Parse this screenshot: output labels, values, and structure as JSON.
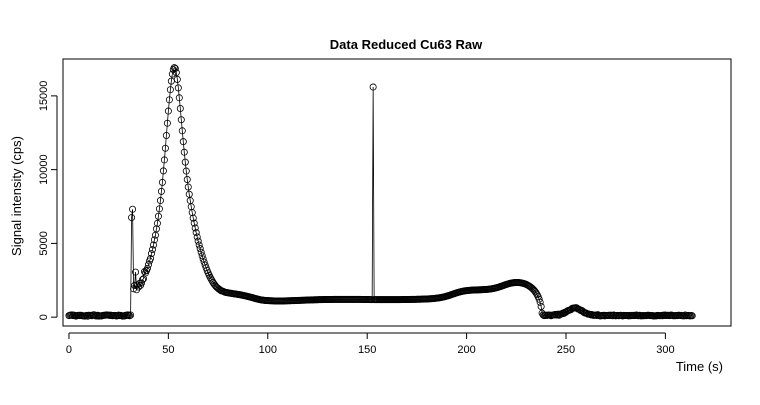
{
  "chart_data": {
    "type": "scatter",
    "title": "Data Reduced Cu63 Raw",
    "xlabel": "Time (s)",
    "ylabel": "Signal intensity (cps)",
    "xlim": [
      -3,
      333
    ],
    "ylim": [
      -600,
      17500
    ],
    "x_ticks": [
      0,
      50,
      100,
      150,
      200,
      250,
      300
    ],
    "y_ticks": [
      0,
      5000,
      10000,
      15000
    ],
    "markers": "open circles joined by a thin line",
    "grid": false,
    "legend": "none",
    "sample_interval_s": 0.5,
    "series": [
      {
        "x_start": 0,
        "x_step": 0.5,
        "values": [
          101,
          126,
          149,
          151,
          100,
          140,
          111,
          70,
          106,
          118,
          131,
          106,
          128,
          102,
          83,
          94,
          72,
          99,
          124,
          64,
          126,
          121,
          118,
          94,
          143,
          159,
          143,
          82,
          89,
          126,
          70,
          94,
          84,
          81,
          119,
          119,
          134,
          132,
          158,
          136,
          141,
          112,
          138,
          112,
          91,
          108,
          121,
          94,
          78,
          123,
          141,
          101,
          123,
          96,
          69,
          95,
          76,
          126,
          117,
          153,
          137,
          92,
          148,
          6750,
          7315,
          1922,
          2144,
          3055,
          1854,
          2167,
          2045,
          2290,
          2152,
          2313,
          2536,
          2603,
          3092,
          2999,
          3153,
          3308,
          3558,
          3810,
          3973,
          4309,
          4581,
          4890,
          5242,
          5557,
          5983,
          6363,
          6839,
          7344,
          7905,
          8527,
          9136,
          9915,
          10658,
          11451,
          12315,
          13147,
          13971,
          14733,
          15419,
          16001,
          16478,
          16789,
          16915,
          16860,
          16575,
          16120,
          15544,
          14870,
          14145,
          13381,
          12633,
          11897,
          11183,
          10510,
          9904,
          9331,
          8823,
          8331,
          7902,
          7488,
          7091,
          6715,
          6371,
          6046,
          5733,
          5437,
          5154,
          4892,
          4644,
          4401,
          4161,
          3946,
          3734,
          3530,
          3345,
          3163,
          3002,
          2851,
          2703,
          2582,
          2459,
          2347,
          2248,
          2160,
          2075,
          2005,
          1953,
          1893,
          1855,
          1794,
          1773,
          1750,
          1725,
          1689,
          1675,
          1661,
          1650,
          1637,
          1624,
          1617,
          1605,
          1595,
          1578,
          1577,
          1569,
          1555,
          1537,
          1531,
          1516,
          1509,
          1495,
          1478,
          1463,
          1450,
          1438,
          1419,
          1401,
          1387,
          1366,
          1350,
          1331,
          1311,
          1288,
          1270,
          1253,
          1238,
          1219,
          1201,
          1189,
          1175,
          1164,
          1153,
          1145,
          1138,
          1130,
          1126,
          1122,
          1117,
          1114,
          1111,
          1109,
          1106,
          1102,
          1099,
          1097,
          1096,
          1095,
          1094,
          1094,
          1094,
          1095,
          1096,
          1099,
          1101,
          1104,
          1106,
          1109,
          1111,
          1113,
          1116,
          1118,
          1120,
          1121,
          1123,
          1125,
          1128,
          1132,
          1135,
          1137,
          1139,
          1142,
          1145,
          1148,
          1150,
          1154,
          1157,
          1160,
          1163,
          1165,
          1168,
          1170,
          1171,
          1173,
          1176,
          1178,
          1179,
          1181,
          1184,
          1186,
          1188,
          1190,
          1191,
          1193,
          1195,
          1196,
          1197,
          1197,
          1197,
          1198,
          1199,
          1199,
          1200,
          1201,
          1202,
          1203,
          1203,
          1203,
          1203,
          1205,
          1205,
          1206,
          1206,
          1206,
          1206,
          1207,
          1207,
          1207,
          1207,
          1207,
          1206,
          1206,
          1206,
          1205,
          1205,
          1204,
          1203,
          1203,
          1202,
          1201,
          1201,
          1200,
          1199,
          1198,
          1198,
          1197,
          1196,
          1195,
          1194,
          1193,
          1192,
          1192,
          1191,
          15600,
          1190,
          1189,
          1189,
          1188,
          1188,
          1187,
          1187,
          1187,
          1186,
          1186,
          1186,
          1186,
          1186,
          1186,
          1186,
          1186,
          1186,
          1187,
          1187,
          1187,
          1187,
          1188,
          1188,
          1189,
          1190,
          1190,
          1191,
          1192,
          1193,
          1193,
          1194,
          1195,
          1196,
          1197,
          1198,
          1199,
          1200,
          1201,
          1203,
          1204,
          1205,
          1206,
          1208,
          1209,
          1211,
          1213,
          1215,
          1217,
          1219,
          1221,
          1224,
          1227,
          1229,
          1233,
          1236,
          1240,
          1244,
          1249,
          1254,
          1259,
          1265,
          1272,
          1279,
          1288,
          1296,
          1306,
          1316,
          1328,
          1341,
          1355,
          1370,
          1386,
          1404,
          1423,
          1443,
          1464,
          1486,
          1509,
          1532,
          1555,
          1578,
          1601,
          1624,
          1646,
          1667,
          1686,
          1705,
          1722,
          1738,
          1753,
          1766,
          1778,
          1788,
          1798,
          1806,
          1813,
          1819,
          1824,
          1829,
          1833,
          1837,
          1840,
          1843,
          1845,
          1848,
          1851,
          1853,
          1856,
          1859,
          1862,
          1866,
          1870,
          1875,
          1880,
          1886,
          1893,
          1901,
          1910,
          1920,
          1931,
          1944,
          1958,
          1974,
          1991,
          2010,
          2030,
          2051,
          2074,
          2097,
          2121,
          2145,
          2169,
          2193,
          2216,
          2238,
          2259,
          2278,
          2295,
          2310,
          2322,
          2333,
          2341,
          2347,
          2350,
          2350,
          2348,
          2343,
          2335,
          2324,
          2310,
          2292,
          2271,
          2246,
          2218,
          2185,
          2149,
          2108,
          2062,
          2010,
          1952,
          1887,
          1813,
          1729,
          1632,
          1518,
          1382,
          1216,
          1006,
          724,
          270,
          154,
          102,
          111,
          134,
          116,
          137,
          150,
          130,
          96,
          134,
          150,
          149,
          191,
          148,
          165,
          207,
          130,
          172,
          225,
          232,
          277,
          258,
          331,
          336,
          405,
          443,
          463,
          486,
          512,
          586,
          608,
          619,
          632,
          648,
          622,
          552,
          537,
          501,
          438,
          447,
          400,
          319,
          278,
          286,
          244,
          202,
          214,
          182,
          156,
          183,
          133,
          119,
          139,
          136,
          109,
          174,
          121,
          85,
          88,
          113,
          102,
          131,
          86,
          122,
          110,
          115,
          129,
          108,
          141,
          114,
          93,
          142,
          119,
          90,
          109,
          119,
          94,
          108,
          126,
          111,
          81,
          124,
          108,
          122,
          109,
          111,
          86,
          119,
          95,
          121,
          120,
          107,
          125,
          112,
          149,
          107,
          94,
          126,
          97,
          86,
          112,
          97,
          101,
          105,
          101,
          125,
          128,
          117,
          104,
          102,
          112,
          80,
          89,
          92,
          88,
          120,
          112,
          96,
          104,
          116,
          95,
          135,
          113,
          144,
          109,
          117,
          127,
          105,
          128,
          143,
          113,
          93,
          106,
          95,
          113,
          103,
          126,
          125,
          110,
          122,
          95,
          91,
          90,
          146,
          97,
          100,
          117,
          97,
          88,
          114,
          91
        ]
      }
    ]
  }
}
